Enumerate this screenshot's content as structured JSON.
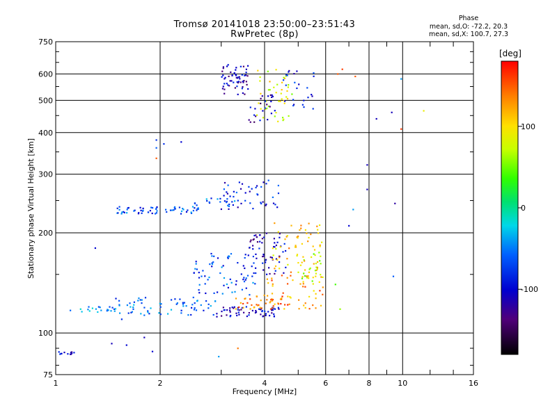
{
  "header": {
    "title": "Tromsø 20141018 23:50:00–23:51:43",
    "subtitle": "RwPretec (8p)"
  },
  "phase_stats": {
    "heading": "Phase",
    "line_o": "mean, sd,O: -72.2, 20.3",
    "line_x": "mean, sd,X: 100.7, 27.3"
  },
  "colorbar": {
    "unit_label": "[deg]",
    "ticks": [
      100,
      0,
      -100
    ],
    "range": [
      -180,
      180
    ]
  },
  "chart_data": {
    "type": "scatter",
    "xlabel": "Frequency [MHz]",
    "ylabel": "Stationary phase Virtual Height [km]",
    "x_scale": "log",
    "y_scale": "log",
    "xlim": [
      1,
      16
    ],
    "ylim": [
      75,
      750
    ],
    "x_ticks": [
      1,
      2,
      4,
      6,
      8,
      10,
      16
    ],
    "y_ticks": [
      75,
      100,
      200,
      300,
      400,
      500,
      600,
      750
    ],
    "x_minor_ticks": [
      3,
      5,
      7,
      9,
      12,
      14
    ],
    "grid": true,
    "color_by": "phase (deg)",
    "clusters": [
      {
        "fx": [
          1.0,
          1.13
        ],
        "hy": [
          86,
          88
        ],
        "phase": -100,
        "count": 12
      },
      {
        "fx": [
          1.1,
          1.5
        ],
        "hy": [
          115,
          122
        ],
        "phase": -40,
        "count": 18
      },
      {
        "fx": [
          1.4,
          2.9
        ],
        "hy": [
          113,
          128
        ],
        "phase": -60,
        "count": 70
      },
      {
        "fx": [
          1.5,
          2.6
        ],
        "hy": [
          228,
          240
        ],
        "phase": -70,
        "count": 60
      },
      {
        "fx": [
          2.5,
          3.3
        ],
        "hy": [
          240,
          256
        ],
        "phase": -60,
        "count": 20
      },
      {
        "fx": [
          2.9,
          4.4
        ],
        "hy": [
          112,
          120
        ],
        "phase": -110,
        "count": 60
      },
      {
        "fx": [
          3.0,
          4.5
        ],
        "hy": [
          235,
          290
        ],
        "phase": -85,
        "count": 45
      },
      {
        "fx": [
          3.0,
          3.6
        ],
        "hy": [
          520,
          640
        ],
        "phase": -110,
        "count": 60
      },
      {
        "fx": [
          2.5,
          3.8
        ],
        "hy": [
          130,
          175
        ],
        "phase": -70,
        "count": 70
      },
      {
        "fx": [
          3.6,
          4.6
        ],
        "hy": [
          150,
          200
        ],
        "phase": -110,
        "count": 60
      },
      {
        "fx": [
          3.3,
          4.8
        ],
        "hy": [
          118,
          130
        ],
        "phase": 135,
        "count": 40
      },
      {
        "fx": [
          4.0,
          5.9
        ],
        "hy": [
          118,
          150
        ],
        "phase": 130,
        "count": 50
      },
      {
        "fx": [
          4.2,
          5.9
        ],
        "hy": [
          150,
          215
        ],
        "phase": 110,
        "count": 60
      },
      {
        "fx": [
          5.1,
          5.9
        ],
        "hy": [
          140,
          175
        ],
        "phase": 75,
        "count": 25
      },
      {
        "fx": [
          3.8,
          4.8
        ],
        "hy": [
          430,
          620
        ],
        "phase": 85,
        "count": 45
      },
      {
        "fx": [
          3.6,
          4.4
        ],
        "hy": [
          430,
          520
        ],
        "phase": -115,
        "count": 25
      },
      {
        "fx": [
          4.5,
          5.6
        ],
        "hy": [
          470,
          620
        ],
        "phase": -95,
        "count": 25
      }
    ],
    "scattered_points": [
      {
        "x": 1.3,
        "y": 180,
        "phase": -100
      },
      {
        "x": 1.55,
        "y": 110,
        "phase": -80
      },
      {
        "x": 1.45,
        "y": 93,
        "phase": -110
      },
      {
        "x": 1.6,
        "y": 92,
        "phase": -100
      },
      {
        "x": 1.8,
        "y": 97,
        "phase": -110
      },
      {
        "x": 1.9,
        "y": 88,
        "phase": -100
      },
      {
        "x": 1.95,
        "y": 380,
        "phase": -80
      },
      {
        "x": 1.95,
        "y": 335,
        "phase": 150
      },
      {
        "x": 1.95,
        "y": 360,
        "phase": -60
      },
      {
        "x": 2.05,
        "y": 370,
        "phase": -80
      },
      {
        "x": 2.3,
        "y": 375,
        "phase": -100
      },
      {
        "x": 2.95,
        "y": 85,
        "phase": -40
      },
      {
        "x": 3.35,
        "y": 90,
        "phase": 140
      },
      {
        "x": 6.5,
        "y": 600,
        "phase": 150
      },
      {
        "x": 6.7,
        "y": 620,
        "phase": 160
      },
      {
        "x": 7.3,
        "y": 590,
        "phase": 150
      },
      {
        "x": 7.9,
        "y": 320,
        "phase": -110
      },
      {
        "x": 7.9,
        "y": 270,
        "phase": -110
      },
      {
        "x": 8.4,
        "y": 440,
        "phase": -110
      },
      {
        "x": 9.3,
        "y": 460,
        "phase": -110
      },
      {
        "x": 9.5,
        "y": 245,
        "phase": -120
      },
      {
        "x": 9.4,
        "y": 148,
        "phase": -60
      },
      {
        "x": 9.9,
        "y": 580,
        "phase": -40
      },
      {
        "x": 9.9,
        "y": 410,
        "phase": 160
      },
      {
        "x": 11.5,
        "y": 465,
        "phase": 90
      },
      {
        "x": 7.0,
        "y": 210,
        "phase": -100
      },
      {
        "x": 6.4,
        "y": 140,
        "phase": 40
      },
      {
        "x": 6.6,
        "y": 118,
        "phase": 60
      },
      {
        "x": 7.2,
        "y": 235,
        "phase": -40
      }
    ]
  }
}
